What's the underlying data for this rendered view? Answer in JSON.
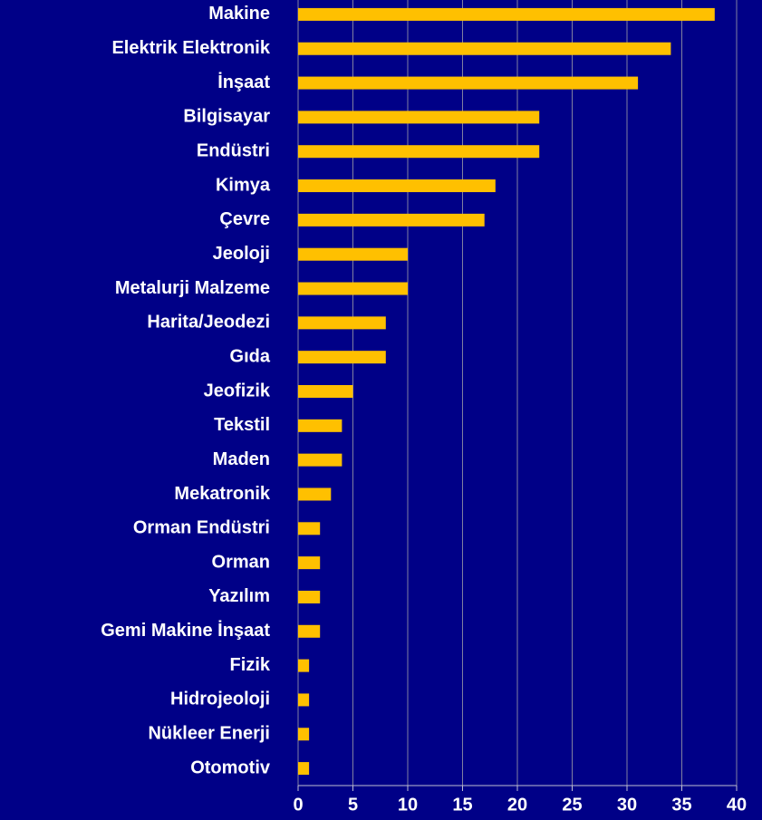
{
  "chart_data": {
    "type": "bar",
    "orientation": "horizontal",
    "categories": [
      "Makine",
      "Elektrik Elektronik",
      "İnşaat",
      "Bilgisayar",
      "Endüstri",
      "Kimya",
      "Çevre",
      "Jeoloji",
      "Metalurji Malzeme",
      "Harita/Jeodezi",
      "Gıda",
      "Jeofizik",
      "Tekstil",
      "Maden",
      "Mekatronik",
      "Orman Endüstri",
      "Orman",
      "Yazılım",
      "Gemi Makine İnşaat",
      "Fizik",
      "Hidrojeoloji",
      "Nükleer Enerji",
      "Otomotiv"
    ],
    "values": [
      38,
      34,
      31,
      22,
      22,
      18,
      17,
      10,
      10,
      8,
      8,
      5,
      4,
      4,
      3,
      2,
      2,
      2,
      2,
      1,
      1,
      1,
      1
    ],
    "color": "#ffc000",
    "xlim": [
      0,
      40
    ],
    "xticks": [
      0,
      5,
      10,
      15,
      20,
      25,
      30,
      35,
      40
    ],
    "grid": true
  }
}
